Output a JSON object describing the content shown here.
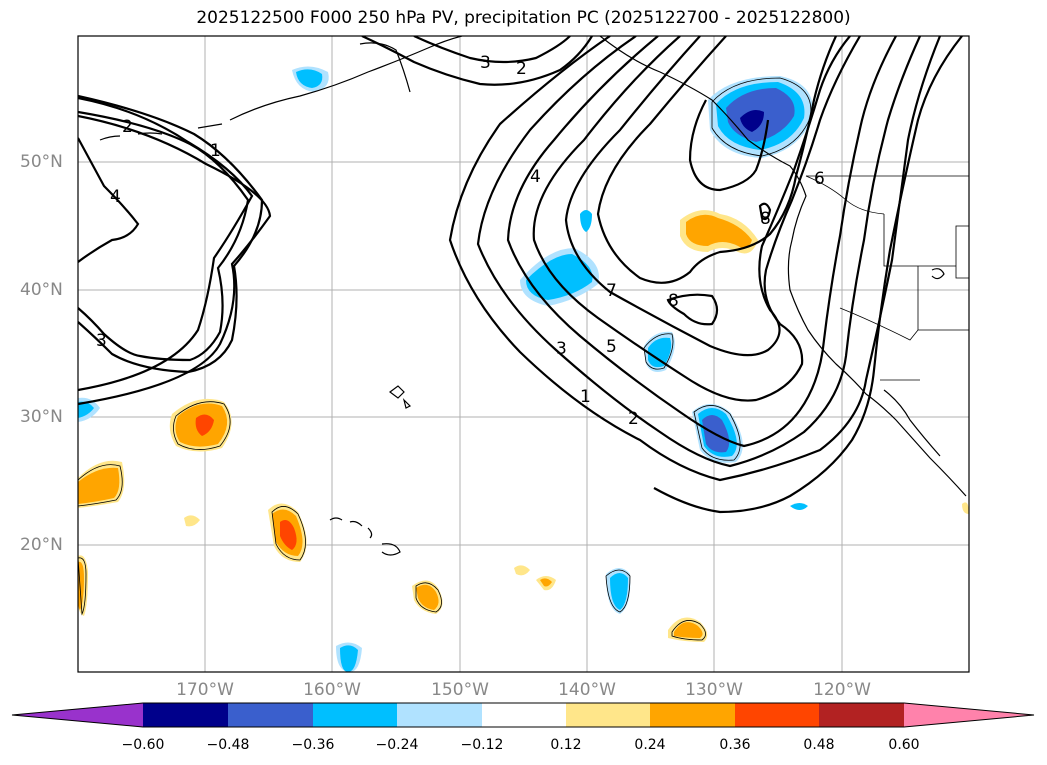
{
  "title": "2025122500 F000 250 hPa PV, precipitation PC (2025122700 - 2025122800)",
  "lat_labels": [
    "50°N",
    "40°N",
    "30°N",
    "20°N"
  ],
  "lon_labels": [
    "170°W",
    "160°W",
    "150°W",
    "140°W",
    "130°W",
    "120°W"
  ],
  "colorbar": {
    "ticks": [
      "−0.60",
      "−0.48",
      "−0.36",
      "−0.24",
      "−0.12",
      "0.12",
      "0.24",
      "0.36",
      "0.48",
      "0.60"
    ],
    "colors": [
      "#9932cc",
      "#00008b",
      "#3a5fcd",
      "#00bfff",
      "#b0e2ff",
      "#ffffff",
      "#ffe68a",
      "#ffa500",
      "#ff4500",
      "#b22222",
      "#ff82ab"
    ]
  },
  "contour_labels": [
    "3",
    "2",
    "2",
    "1",
    "4",
    "3",
    "4",
    "7",
    "3",
    "5",
    "1",
    "2",
    "6",
    "8",
    "8"
  ],
  "colors": {
    "precip_negative_light": "#b0e2ff",
    "precip_negative": "#00bfff",
    "precip_negative_strong": "#3a5fcd",
    "precip_negative_extreme": "#00008b",
    "precip_positive_light": "#ffe68a",
    "precip_positive": "#ffa500",
    "precip_positive_strong": "#ff4500"
  }
}
